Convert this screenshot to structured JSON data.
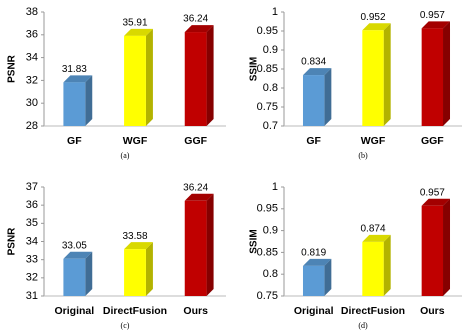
{
  "chart_data": [
    {
      "type": "bar",
      "ylabel": "PSNR",
      "caption": "(a)",
      "categories": [
        "GF",
        "WGF",
        "GGF"
      ],
      "values": [
        31.83,
        35.91,
        36.24
      ],
      "colors": [
        "#5b9bd5",
        "#ffff00",
        "#c00000"
      ],
      "ylim": [
        28,
        38
      ],
      "yticks": [
        28,
        30,
        32,
        34,
        36,
        38
      ]
    },
    {
      "type": "bar",
      "ylabel": "SSIM",
      "caption": "(b)",
      "categories": [
        "GF",
        "WGF",
        "GGF"
      ],
      "values": [
        0.834,
        0.952,
        0.957
      ],
      "colors": [
        "#5b9bd5",
        "#ffff00",
        "#c00000"
      ],
      "ylim": [
        0.7,
        1
      ],
      "yticks": [
        0.7,
        0.75,
        0.8,
        0.85,
        0.9,
        0.95,
        1
      ]
    },
    {
      "type": "bar",
      "ylabel": "PSNR",
      "caption": "(c)",
      "categories": [
        "Original",
        "DirectFusion",
        "Ours"
      ],
      "values": [
        33.05,
        33.58,
        36.24
      ],
      "colors": [
        "#5b9bd5",
        "#ffff00",
        "#c00000"
      ],
      "ylim": [
        31,
        37
      ],
      "yticks": [
        31,
        32,
        33,
        34,
        35,
        36,
        37
      ]
    },
    {
      "type": "bar",
      "ylabel": "SSIM",
      "caption": "(d)",
      "categories": [
        "Original",
        "DirectFusion",
        "Ours"
      ],
      "values": [
        0.819,
        0.874,
        0.957
      ],
      "colors": [
        "#5b9bd5",
        "#ffff00",
        "#c00000"
      ],
      "ylim": [
        0.75,
        1
      ],
      "yticks": [
        0.75,
        0.8,
        0.85,
        0.9,
        0.95,
        1
      ]
    }
  ]
}
